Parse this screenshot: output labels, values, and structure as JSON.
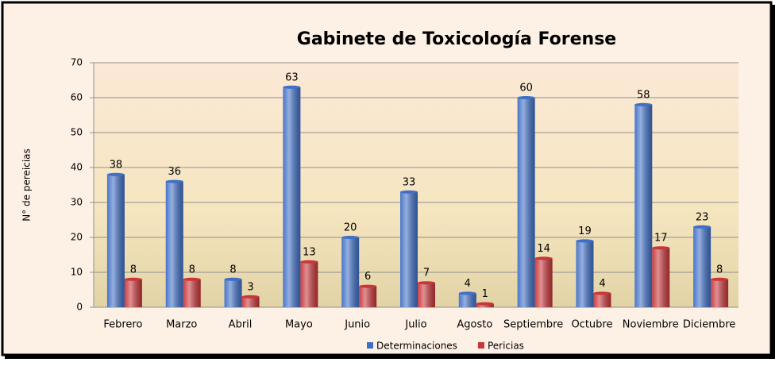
{
  "chart_data": {
    "type": "bar",
    "title": "Gabinete de Toxicología Forense",
    "y_label": "N° de pereicias",
    "categories": [
      "Febrero",
      "Marzo",
      "Abril",
      "Mayo",
      "Junio",
      "Julio",
      "Agosto",
      "Septiembre",
      "Octubre",
      "Noviembre",
      "Diciembre"
    ],
    "series": [
      {
        "name": "Determinaciones",
        "color": "#3f6fc6",
        "values": [
          38,
          36,
          8,
          63,
          20,
          33,
          4,
          60,
          19,
          58,
          23
        ]
      },
      {
        "name": "Pericias",
        "color": "#c8363a",
        "values": [
          8,
          8,
          3,
          13,
          6,
          7,
          1,
          14,
          4,
          17,
          8
        ]
      }
    ],
    "ylim": [
      0,
      70
    ],
    "yticks": [
      0,
      10,
      20,
      30,
      40,
      50,
      60,
      70
    ],
    "grid": true,
    "legend": "bottom"
  }
}
